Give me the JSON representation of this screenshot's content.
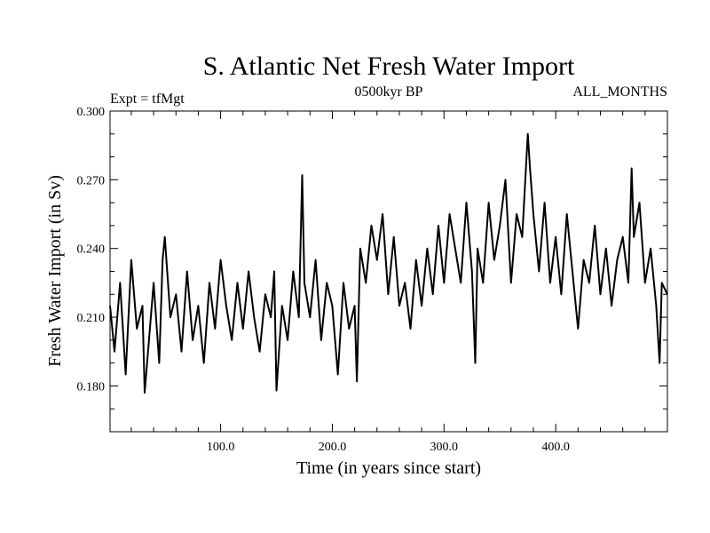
{
  "chart_data": {
    "type": "line",
    "title": "S. Atlantic Net Fresh Water Import",
    "subtitle_left": "Expt = tfMgt",
    "subtitle_center": "0500kyr BP",
    "subtitle_right": "ALL_MONTHS",
    "xlabel": "Time (in years since start)",
    "ylabel": "Fresh Water Import (in Sv)",
    "xlim": [
      1,
      500
    ],
    "ylim": [
      0.16,
      0.3
    ],
    "x_ticks": [
      100,
      200,
      300,
      400
    ],
    "x_tick_labels": [
      "100.0",
      "200.0",
      "300.0",
      "400.0"
    ],
    "y_ticks": [
      0.18,
      0.21,
      0.24,
      0.27,
      0.3
    ],
    "y_tick_labels": [
      "0.180",
      "0.210",
      "0.240",
      "0.270",
      "0.300"
    ],
    "grid": false,
    "series": [
      {
        "x": [
          1,
          5,
          10,
          15,
          20,
          25,
          30,
          32,
          35,
          40,
          45,
          48,
          50,
          55,
          60,
          65,
          70,
          75,
          80,
          85,
          90,
          95,
          100,
          105,
          110,
          115,
          120,
          125,
          130,
          135,
          140,
          145,
          148,
          150,
          155,
          160,
          165,
          170,
          173,
          175,
          180,
          185,
          190,
          195,
          200,
          205,
          210,
          215,
          220,
          222,
          225,
          230,
          235,
          240,
          245,
          250,
          255,
          260,
          265,
          270,
          275,
          280,
          285,
          290,
          295,
          300,
          305,
          310,
          315,
          320,
          325,
          328,
          330,
          335,
          340,
          345,
          350,
          355,
          360,
          365,
          370,
          375,
          377,
          380,
          385,
          390,
          395,
          400,
          405,
          410,
          415,
          420,
          425,
          430,
          435,
          440,
          445,
          450,
          455,
          460,
          465,
          468,
          470,
          475,
          480,
          485,
          490,
          493,
          495,
          500
        ],
        "y": [
          0.215,
          0.195,
          0.225,
          0.185,
          0.235,
          0.205,
          0.215,
          0.177,
          0.195,
          0.225,
          0.19,
          0.235,
          0.245,
          0.21,
          0.22,
          0.195,
          0.23,
          0.2,
          0.215,
          0.19,
          0.225,
          0.205,
          0.235,
          0.215,
          0.2,
          0.225,
          0.205,
          0.23,
          0.21,
          0.195,
          0.22,
          0.21,
          0.23,
          0.178,
          0.215,
          0.2,
          0.23,
          0.21,
          0.272,
          0.225,
          0.21,
          0.235,
          0.2,
          0.225,
          0.215,
          0.185,
          0.225,
          0.205,
          0.215,
          0.182,
          0.24,
          0.225,
          0.25,
          0.235,
          0.255,
          0.22,
          0.245,
          0.215,
          0.225,
          0.205,
          0.235,
          0.215,
          0.24,
          0.22,
          0.25,
          0.225,
          0.255,
          0.24,
          0.225,
          0.26,
          0.23,
          0.19,
          0.24,
          0.225,
          0.26,
          0.235,
          0.25,
          0.27,
          0.225,
          0.255,
          0.245,
          0.29,
          0.275,
          0.255,
          0.23,
          0.26,
          0.225,
          0.245,
          0.22,
          0.255,
          0.23,
          0.205,
          0.235,
          0.225,
          0.25,
          0.22,
          0.24,
          0.215,
          0.235,
          0.245,
          0.225,
          0.275,
          0.245,
          0.26,
          0.225,
          0.24,
          0.215,
          0.19,
          0.225,
          0.22
        ]
      }
    ]
  }
}
